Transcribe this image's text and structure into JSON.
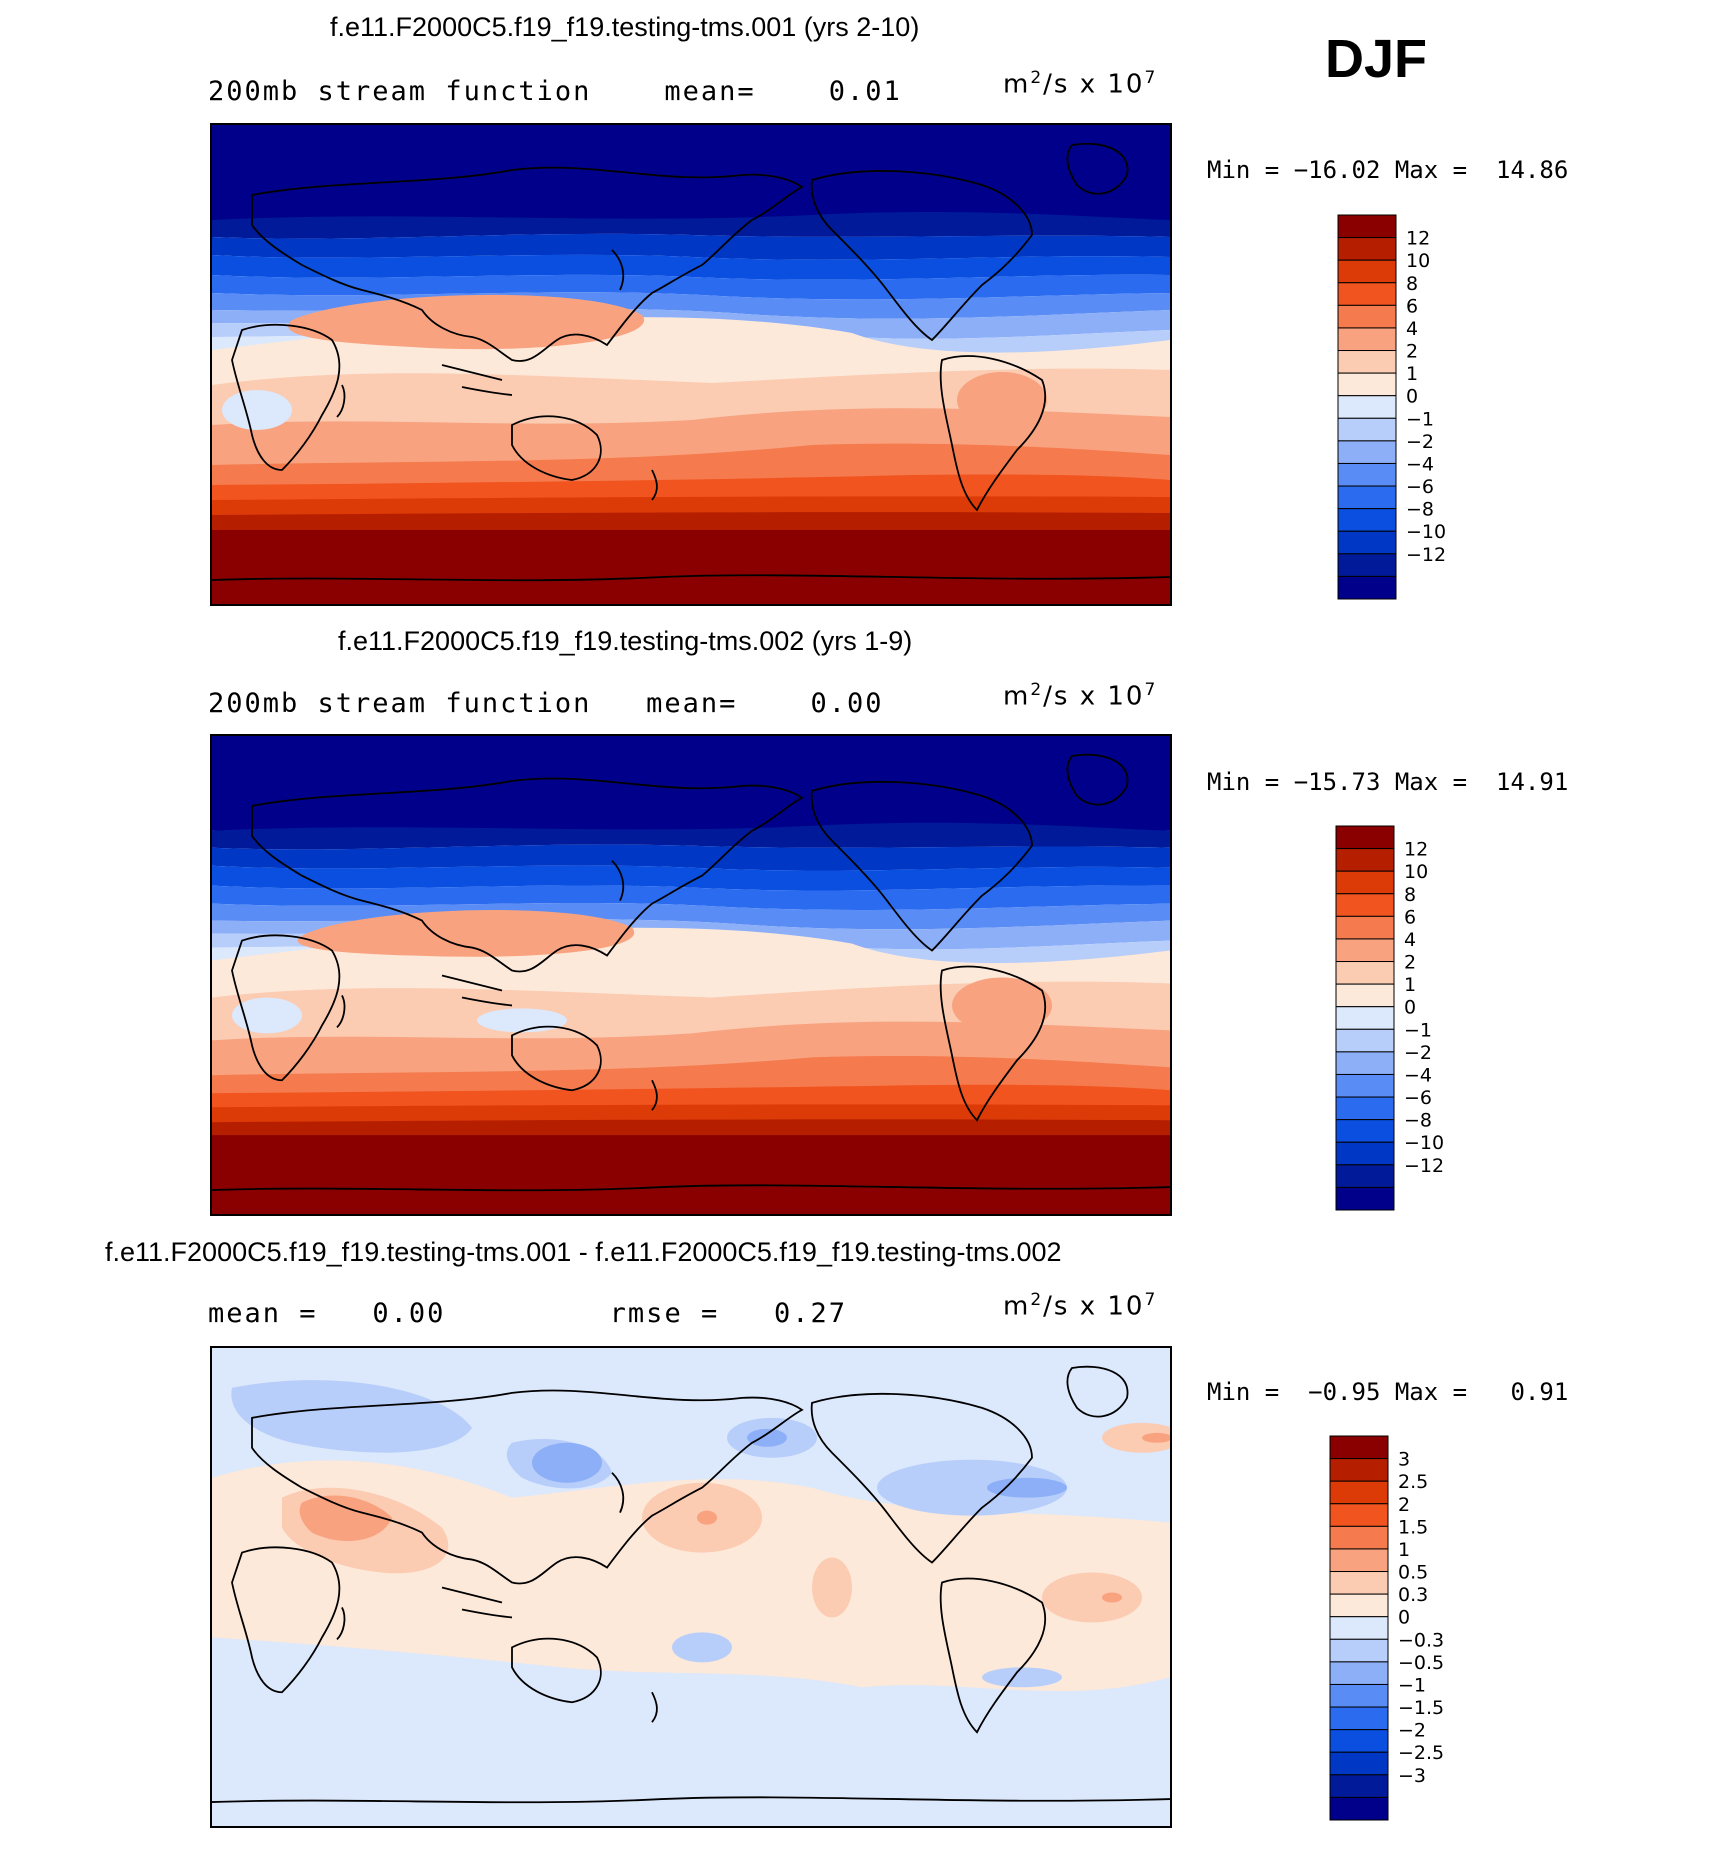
{
  "season": "DJF",
  "panels": [
    {
      "title": "f.e11.F2000C5.f19_f19.testing-tms.001 (yrs 2-10)",
      "field": "200mb stream function",
      "stat1_label": "mean=",
      "stat1_value": "0.01",
      "units": "m²/s x 10⁷",
      "min_label": "Min =",
      "min_value": "−16.02",
      "max_label": "Max =",
      "max_value": "14.86"
    },
    {
      "title": "f.e11.F2000C5.f19_f19.testing-tms.002 (yrs 1-9)",
      "field": "200mb stream function",
      "stat1_label": "mean=",
      "stat1_value": "0.00",
      "units": "m²/s x 10⁷",
      "min_label": "Min =",
      "min_value": "−15.73",
      "max_label": "Max =",
      "max_value": "14.91"
    },
    {
      "title": "f.e11.F2000C5.f19_f19.testing-tms.001 - f.e11.F2000C5.f19_f19.testing-tms.002",
      "stat1_label": "mean =",
      "stat1_value": "0.00",
      "stat2_label": "rmse =",
      "stat2_value": "0.27",
      "units": "m²/s x 10⁷",
      "min_label": "Min =",
      "min_value": "−0.95",
      "max_label": "Max =",
      "max_value": "0.91"
    }
  ],
  "chart_data": [
    {
      "type": "heatmap",
      "title": "f.e11.F2000C5.f19_f19.testing-tms.001 (yrs 2-10)",
      "variable": "200mb stream function",
      "mean": 0.01,
      "min": -16.02,
      "max": 14.86,
      "contour_levels": [
        -12,
        -10,
        -8,
        -6,
        -4,
        -2,
        -1,
        0,
        1,
        2,
        4,
        6,
        8,
        10,
        12
      ],
      "colorbar_labels": [
        "12",
        "10",
        "8",
        "6",
        "4",
        "2",
        "1",
        "0",
        "−1",
        "−2",
        "−4",
        "−6",
        "−8",
        "−10",
        "−12"
      ],
      "zonal_pattern": [
        {
          "lat": 90,
          "value": -14
        },
        {
          "lat": 65,
          "value": -12
        },
        {
          "lat": 50,
          "value": -9
        },
        {
          "lat": 38,
          "value": -5
        },
        {
          "lat": 28,
          "value": -1.5
        },
        {
          "lat": 15,
          "value": 1.5
        },
        {
          "lat": 0,
          "value": 2.5
        },
        {
          "lat": -15,
          "value": 3.5
        },
        {
          "lat": -30,
          "value": 6
        },
        {
          "lat": -45,
          "value": 10
        },
        {
          "lat": -60,
          "value": 13.5
        },
        {
          "lat": -90,
          "value": 14
        }
      ]
    },
    {
      "type": "heatmap",
      "title": "f.e11.F2000C5.f19_f19.testing-tms.002 (yrs 1-9)",
      "variable": "200mb stream function",
      "mean": 0.0,
      "min": -15.73,
      "max": 14.91,
      "contour_levels": [
        -12,
        -10,
        -8,
        -6,
        -4,
        -2,
        -1,
        0,
        1,
        2,
        4,
        6,
        8,
        10,
        12
      ],
      "colorbar_labels": [
        "12",
        "10",
        "8",
        "6",
        "4",
        "2",
        "1",
        "0",
        "−1",
        "−2",
        "−4",
        "−6",
        "−8",
        "−10",
        "−12"
      ],
      "zonal_pattern": [
        {
          "lat": 90,
          "value": -14
        },
        {
          "lat": 65,
          "value": -12
        },
        {
          "lat": 50,
          "value": -9
        },
        {
          "lat": 38,
          "value": -5
        },
        {
          "lat": 28,
          "value": -1.5
        },
        {
          "lat": 15,
          "value": 1.5
        },
        {
          "lat": 0,
          "value": 2.5
        },
        {
          "lat": -15,
          "value": 3.5
        },
        {
          "lat": -30,
          "value": 6
        },
        {
          "lat": -45,
          "value": 10
        },
        {
          "lat": -60,
          "value": 13.5
        },
        {
          "lat": -90,
          "value": 14
        }
      ]
    },
    {
      "type": "heatmap",
      "title": "f.e11.F2000C5.f19_f19.testing-tms.001 - f.e11.F2000C5.f19_f19.testing-tms.002",
      "mean": 0.0,
      "rmse": 0.27,
      "min": -0.95,
      "max": 0.91,
      "contour_levels": [
        -3,
        -2.5,
        -2,
        -1.5,
        -1,
        -0.5,
        -0.3,
        0,
        0.3,
        0.5,
        1,
        1.5,
        2,
        2.5,
        3
      ],
      "colorbar_labels": [
        "3",
        "2.5",
        "2",
        "1.5",
        "1",
        "0.5",
        "0.3",
        "0",
        "−0.3",
        "−0.5",
        "−1",
        "−1.5",
        "−2",
        "−2.5",
        "−3"
      ]
    }
  ],
  "palette": [
    "#00008a",
    "#001a9a",
    "#0037c4",
    "#0a4fe0",
    "#2a6bf0",
    "#5a8cf5",
    "#8caff8",
    "#b8cefa",
    "#dce8fb",
    "#fde9d9",
    "#fbcbb2",
    "#f8a27f",
    "#f57a4d",
    "#f1541f",
    "#dc3a07",
    "#b51f00",
    "#8a0000"
  ]
}
